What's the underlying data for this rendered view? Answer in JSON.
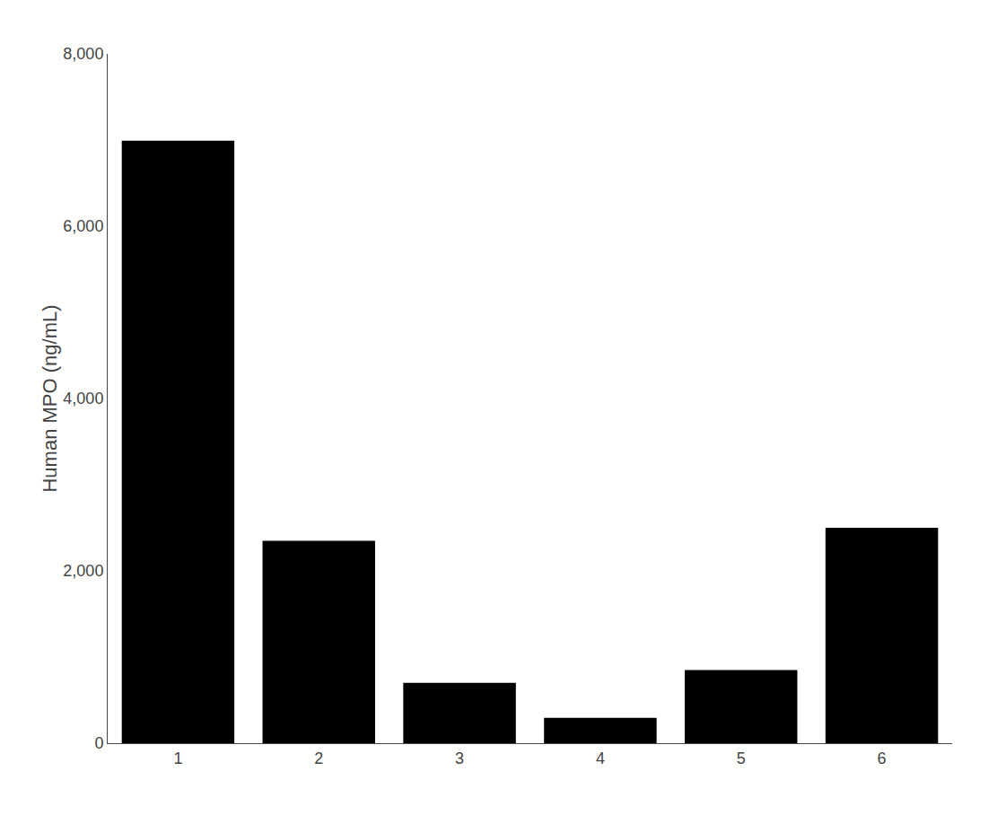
{
  "chart_data": {
    "type": "bar",
    "categories": [
      "1",
      "2",
      "3",
      "4",
      "5",
      "6"
    ],
    "values": [
      6991.1,
      2350.0,
      700.0,
      294.1,
      850.0,
      2500.0
    ],
    "color": "#000000",
    "ylabel": "Human MPO (ng/mL)",
    "ylim": [
      0,
      8000
    ],
    "yticks": [
      0,
      {
        "value": 2000,
        "label": "2,000"
      },
      {
        "value": 4000,
        "label": "4,000"
      },
      {
        "value": 6000,
        "label": "6,000"
      },
      {
        "value": 8000,
        "label": "8,000"
      }
    ],
    "grid": false
  }
}
